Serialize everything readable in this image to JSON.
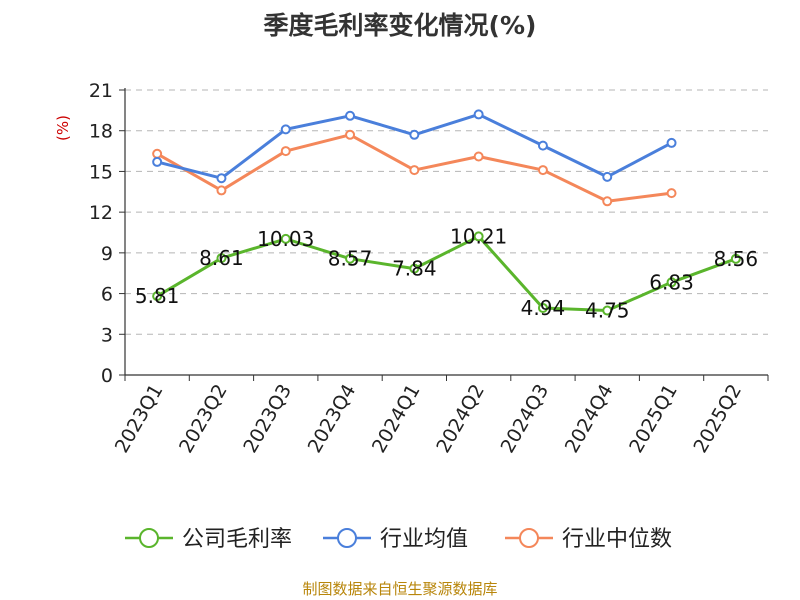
{
  "chart_data": {
    "type": "line",
    "title": "季度毛利率变化情况(%)",
    "ylabel": "(%)",
    "xlabel": "",
    "ylim": [
      0,
      21
    ],
    "yticks": [
      0,
      3,
      6,
      9,
      12,
      15,
      18,
      21
    ],
    "categories": [
      "2023Q1",
      "2023Q2",
      "2023Q3",
      "2023Q4",
      "2024Q1",
      "2024Q2",
      "2024Q3",
      "2024Q4",
      "2025Q1",
      "2025Q2"
    ],
    "grid": true,
    "legend_position": "bottom",
    "series": [
      {
        "name": "公司毛利率",
        "color": "#5ab52c",
        "values": [
          5.81,
          8.61,
          10.03,
          8.57,
          7.84,
          10.21,
          4.94,
          4.75,
          6.83,
          8.56
        ],
        "labels": [
          "5.81",
          "8.61",
          "10.03",
          "8.57",
          "7.84",
          "10.21",
          "4.94",
          "4.75",
          "6.83",
          "8.56"
        ]
      },
      {
        "name": "行业均值",
        "color": "#4a7fdb",
        "values": [
          15.7,
          14.5,
          18.1,
          19.1,
          17.7,
          19.2,
          16.9,
          14.6,
          17.1,
          null
        ]
      },
      {
        "name": "行业中位数",
        "color": "#f4875a",
        "values": [
          16.3,
          13.6,
          16.5,
          17.7,
          15.1,
          16.1,
          15.1,
          12.8,
          13.4,
          null
        ]
      }
    ],
    "source": "制图数据来自恒生聚源数据库"
  }
}
